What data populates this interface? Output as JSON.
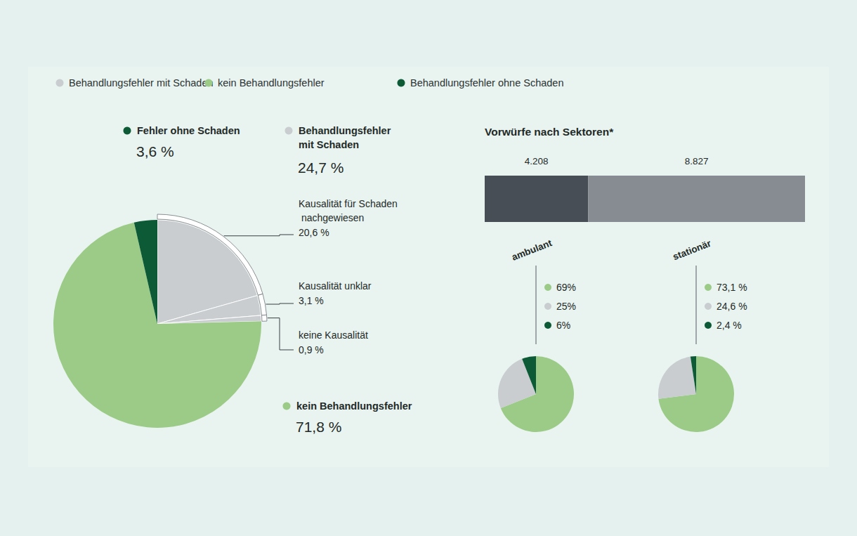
{
  "chart_data": [
    {
      "type": "pie",
      "legend": "top-left",
      "groups": [
        {
          "name": "Behandlungsfehler mit Schaden",
          "label": "Behandlungsfehler mit Schaden",
          "value": 24.7,
          "value_label": "24,7 %",
          "color": "#c9cdd0",
          "parts": [
            {
              "label": "Kausalität für Schaden nachgewiesen",
              "value": 20.6,
              "value_label": "20,6 %"
            },
            {
              "label": "Kausalität unklar",
              "value": 3.1,
              "value_label": "3,1 %"
            },
            {
              "label": "keine Kausalität",
              "value": 0.9,
              "value_label": "0,9 %"
            }
          ]
        },
        {
          "name": "kein Behandlungsfehler",
          "label": "kein Behandlungsfehler",
          "value": 71.8,
          "value_label": "71,8 %",
          "color": "#9bcb87"
        },
        {
          "name": "Behandlungsfehler ohne Schaden",
          "label": "Fehler ohne Schaden",
          "value": 3.6,
          "value_label": "3,6 %",
          "color": "#0c5a36"
        }
      ]
    },
    {
      "type": "bar",
      "title": "Vorwürfe nach Sektoren*",
      "orientation": "horizontal",
      "stacked": true,
      "data_labels": true,
      "tick_labels": false,
      "xlim": [
        0,
        13035
      ],
      "categories": [
        null
      ],
      "series": [
        {
          "name": "ambulant",
          "color": "#474e55",
          "values": [
            4208
          ],
          "value_labels": [
            "4.208"
          ]
        },
        {
          "name": "stationär",
          "color": "#868c92",
          "values": [
            8827
          ],
          "value_labels": [
            "8.827"
          ]
        }
      ]
    },
    {
      "type": "pie",
      "title": "ambulant",
      "categories": [
        "kein Behandlungsfehler",
        "Behandlungsfehler mit Schaden",
        "Behandlungsfehler ohne Schaden"
      ],
      "values": [
        69,
        25,
        6
      ],
      "value_labels": [
        "69%",
        "25%",
        "6%"
      ],
      "colors": [
        "#9bcb87",
        "#c9cdd0",
        "#0c5a36"
      ]
    },
    {
      "type": "pie",
      "title": "stationär",
      "categories": [
        "kein Behandlungsfehler",
        "Behandlungsfehler mit Schaden",
        "Behandlungsfehler ohne Schaden"
      ],
      "values": [
        73.1,
        24.6,
        2.4
      ],
      "value_labels": [
        "73,1 %",
        "24,6 %",
        "2,4 %"
      ],
      "colors": [
        "#9bcb87",
        "#c9cdd0",
        "#0c5a36"
      ]
    }
  ]
}
